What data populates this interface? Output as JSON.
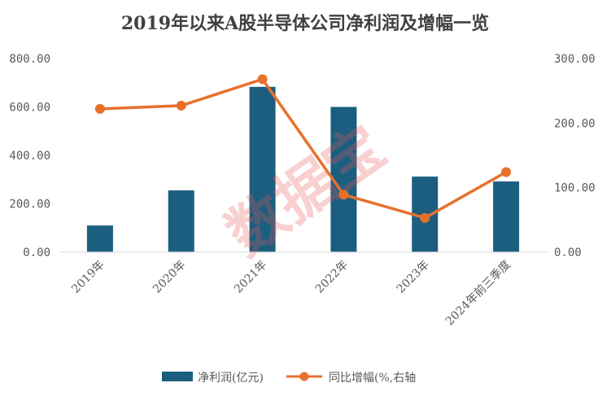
{
  "chart_data": {
    "type": "bar+line",
    "title": "2019年以来A股半导体公司净利润及增幅一览",
    "categories": [
      "2019年",
      "2020年",
      "2021年",
      "2022年",
      "2023年",
      "2024年前三季度"
    ],
    "series": [
      {
        "name": "净利润(亿元)",
        "type": "bar",
        "axis": "left",
        "values": [
          110,
          255,
          683,
          600,
          312,
          292
        ],
        "color": "#1b5e80"
      },
      {
        "name": "同比增幅(%,右轴",
        "type": "line",
        "axis": "right",
        "values": [
          222,
          227,
          268,
          89,
          53,
          124
        ],
        "color": "#e8702d"
      }
    ],
    "y_left": {
      "ticks": [
        "800.00",
        "600.00",
        "400.00",
        "200.00",
        "0.00"
      ],
      "ylim": [
        0,
        800
      ]
    },
    "y_right": {
      "ticks": [
        "300.00",
        "200.00",
        "100.00",
        "0.00"
      ],
      "ylim": [
        0,
        300
      ]
    },
    "legend_position": "bottom",
    "grid": false,
    "watermark": "数据宝"
  }
}
